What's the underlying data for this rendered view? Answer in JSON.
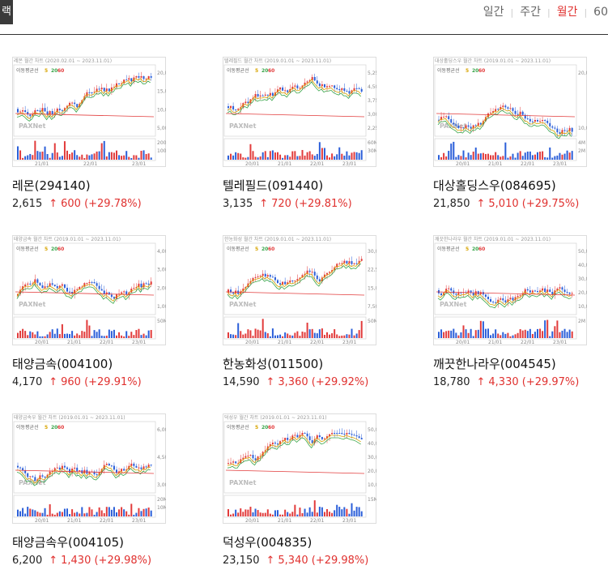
{
  "header": {
    "left_tab_label": "랙",
    "periods": [
      {
        "label": "일간",
        "active": false
      },
      {
        "label": "주간",
        "active": false
      },
      {
        "label": "월간",
        "active": true
      },
      {
        "label": "60",
        "active": false
      }
    ]
  },
  "colors": {
    "up": "#e0312f",
    "ma5": "#d8a400",
    "ma20": "#3aa64a",
    "ma60": "#e23b3b"
  },
  "chart_common": {
    "legend_label": "이동평균선",
    "ma_labels": [
      "5",
      "20",
      "60"
    ],
    "watermark": "PAXNet"
  },
  "stocks": [
    {
      "name": "레몬(294140)",
      "price": "2,615",
      "arrow": "↑",
      "change": "600 (+29.78%)",
      "chart_title": "레몬 월간 차트 (2020.02.01 ~ 2023.11.01)",
      "x_ticks": [
        "21/01",
        "22/01",
        "23/01"
      ],
      "y_ticks": [
        "20,000",
        "15,000",
        "10,000",
        "5,000"
      ],
      "vol_ticks": [
        "200M",
        "100M"
      ]
    },
    {
      "name": "텔레필드(091440)",
      "price": "3,135",
      "arrow": "↑",
      "change": "720 (+29.81%)",
      "chart_title": "텔레필드 월간 차트 (2019.01.01 ~ 2023.11.01)",
      "x_ticks": [
        "20/01",
        "21/01",
        "22/01",
        "23/01"
      ],
      "y_ticks": [
        "5,250",
        "4,500",
        "3,750",
        "3,000",
        "2,250"
      ],
      "vol_ticks": [
        "60M",
        "30M"
      ]
    },
    {
      "name": "대상홀딩스우(084695)",
      "price": "21,850",
      "arrow": "↑",
      "change": "5,010 (+29.75%)",
      "chart_title": "대상홀딩스우 월간 차트 (2019.01.01 ~ 2023.11.01)",
      "x_ticks": [
        "20/01",
        "21/01",
        "22/01",
        "23/01"
      ],
      "y_ticks": [
        "20,000",
        "10,000"
      ],
      "vol_ticks": [
        "4M",
        "2M"
      ]
    },
    {
      "name": "태양금속(004100)",
      "price": "4,170",
      "arrow": "↑",
      "change": "960 (+29.91%)",
      "chart_title": "태양금속 월간 차트 (2019.01.01 ~ 2023.11.01)",
      "x_ticks": [
        "20/01",
        "21/01",
        "22/01",
        "23/01"
      ],
      "y_ticks": [
        "4,000",
        "3,000",
        "2,000",
        "1,000"
      ],
      "vol_ticks": [
        "50M"
      ]
    },
    {
      "name": "한농화성(011500)",
      "price": "14,590",
      "arrow": "↑",
      "change": "3,360 (+29.92%)",
      "chart_title": "한농화성 월간 차트 (2019.01.01 ~ 2023.11.01)",
      "x_ticks": [
        "20/01",
        "21/01",
        "22/01",
        "23/01"
      ],
      "y_ticks": [
        "30,000",
        "22,500",
        "15,000",
        "7,500"
      ],
      "vol_ticks": [
        "50M"
      ]
    },
    {
      "name": "깨끗한나라우(004545)",
      "price": "18,780",
      "arrow": "↑",
      "change": "4,330 (+29.97%)",
      "chart_title": "깨끗한나라우 월간 차트 (2019.01.01 ~ 2023.11.01)",
      "x_ticks": [
        "20/01",
        "21/01",
        "22/01",
        "23/01"
      ],
      "y_ticks": [
        "50,000",
        "40,000",
        "30,000",
        "20,000",
        "10,000"
      ],
      "vol_ticks": [
        "2M"
      ]
    },
    {
      "name": "태양금속우(004105)",
      "price": "6,200",
      "arrow": "↑",
      "change": "1,430 (+29.98%)",
      "chart_title": "태양금속우 월간 차트 (2019.01.01 ~ 2023.11.01)",
      "x_ticks": [
        "20/01",
        "21/01",
        "22/01",
        "23/01"
      ],
      "y_ticks": [
        "6,000",
        "4,500",
        "3,000"
      ],
      "vol_ticks": [
        "20M",
        "10M"
      ]
    },
    {
      "name": "덕성우(004835)",
      "price": "23,150",
      "arrow": "↑",
      "change": "5,340 (+29.98%)",
      "chart_title": "덕성우 월간 차트 (2019.01.01 ~ 2023.11.01)",
      "x_ticks": [
        "20/01",
        "21/01",
        "22/01",
        "23/01"
      ],
      "y_ticks": [
        "50,000",
        "40,000",
        "30,000",
        "20,000",
        "10,000"
      ],
      "vol_ticks": [
        "15M"
      ]
    }
  ]
}
